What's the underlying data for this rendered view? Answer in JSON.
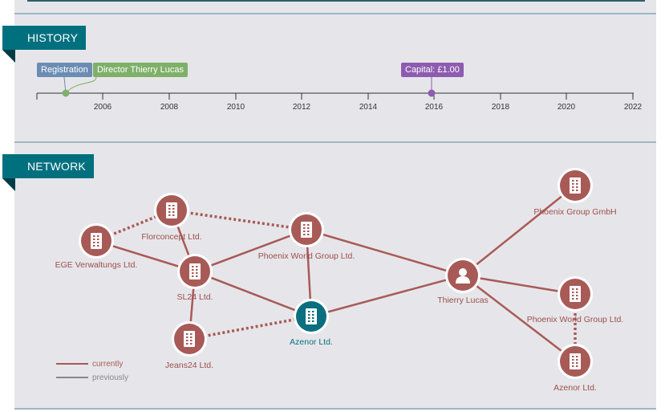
{
  "history": {
    "title": "HISTORY",
    "events": [
      {
        "label": "Registration",
        "color": "#6b8cb3"
      },
      {
        "label": "Director Thierry Lucas",
        "color": "#7fb069"
      },
      {
        "label": "Capital: £1.00",
        "color": "#8d5cb0"
      }
    ],
    "years": [
      "2006",
      "2008",
      "2010",
      "2012",
      "2014",
      "2016",
      "2018",
      "2020",
      "2022"
    ]
  },
  "network": {
    "title": "NETWORK",
    "nodes": [
      {
        "id": "ege",
        "label": "EGE Verwaltungs Ltd.",
        "type": "company",
        "highlight": false
      },
      {
        "id": "florconcept",
        "label": "Florconcept Ltd.",
        "type": "company",
        "highlight": false
      },
      {
        "id": "sl24",
        "label": "SL24 Ltd.",
        "type": "company",
        "highlight": false
      },
      {
        "id": "phoenix_world_1",
        "label": "Phoenix World Group Ltd.",
        "type": "company",
        "highlight": false
      },
      {
        "id": "jeans24",
        "label": "Jeans24 Ltd.",
        "type": "company",
        "highlight": false
      },
      {
        "id": "azenor_main",
        "label": "Azenor Ltd.",
        "type": "company",
        "highlight": true
      },
      {
        "id": "thierry",
        "label": "Thierry Lucas",
        "type": "person",
        "highlight": false
      },
      {
        "id": "phoenix_gmbh",
        "label": "Phoenix Group GmbH",
        "type": "company",
        "highlight": false
      },
      {
        "id": "phoenix_world_2",
        "label": "Phoenix World Group Ltd.",
        "type": "company",
        "highlight": false
      },
      {
        "id": "azenor_2",
        "label": "Azenor Ltd.",
        "type": "company",
        "highlight": false
      }
    ],
    "edges": [
      {
        "from": "ege",
        "to": "florconcept",
        "style": "dotted"
      },
      {
        "from": "ege",
        "to": "sl24",
        "style": "solid"
      },
      {
        "from": "florconcept",
        "to": "sl24",
        "style": "solid"
      },
      {
        "from": "florconcept",
        "to": "phoenix_world_1",
        "style": "dotted"
      },
      {
        "from": "sl24",
        "to": "phoenix_world_1",
        "style": "solid"
      },
      {
        "from": "sl24",
        "to": "jeans24",
        "style": "solid"
      },
      {
        "from": "sl24",
        "to": "azenor_main",
        "style": "solid"
      },
      {
        "from": "jeans24",
        "to": "azenor_main",
        "style": "dotted"
      },
      {
        "from": "phoenix_world_1",
        "to": "azenor_main",
        "style": "solid"
      },
      {
        "from": "phoenix_world_1",
        "to": "thierry",
        "style": "solid"
      },
      {
        "from": "azenor_main",
        "to": "thierry",
        "style": "solid"
      },
      {
        "from": "thierry",
        "to": "phoenix_gmbh",
        "style": "solid"
      },
      {
        "from": "thierry",
        "to": "phoenix_world_2",
        "style": "solid"
      },
      {
        "from": "thierry",
        "to": "azenor_2",
        "style": "solid"
      },
      {
        "from": "phoenix_world_2",
        "to": "azenor_2",
        "style": "dotted"
      }
    ],
    "legend": [
      {
        "label": "currently",
        "color": "#a85a56"
      },
      {
        "label": "previously",
        "color": "#888888"
      }
    ],
    "colors": {
      "node": "#a85a56",
      "highlight": "#0a6f7e",
      "label": "#9b4f4b",
      "highlight_label": "#0a6f7e"
    }
  }
}
